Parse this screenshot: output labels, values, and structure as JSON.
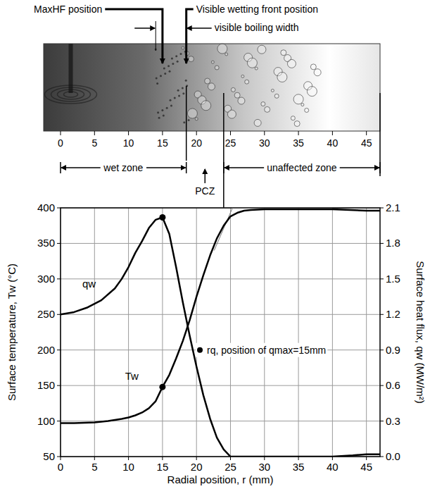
{
  "chart_data": {
    "type": "line",
    "x_label": "Radial position, r (mm)",
    "y_label": "Surface temperature, Tw (°C)",
    "y2_label": "Surface heat flux, qw (MW/m²)",
    "xlim": [
      0,
      47
    ],
    "xticks": [
      0,
      5,
      10,
      15,
      20,
      25,
      30,
      35,
      40,
      45
    ],
    "ylim": [
      50,
      400
    ],
    "yticks": [
      50,
      100,
      150,
      200,
      250,
      300,
      350,
      400
    ],
    "y2lim": [
      0,
      2.1
    ],
    "y2ticks": [
      {
        "value": 0,
        "label": "0.0"
      },
      0.3,
      0.6,
      0.9,
      1.2,
      1.5,
      1.8,
      2.1
    ],
    "grid": true,
    "series": [
      {
        "name": "Tw",
        "color": "#000000",
        "axis": "y",
        "x": [
          0,
          2,
          5,
          7,
          9,
          10,
          11,
          12,
          13,
          14,
          15,
          16,
          17,
          18,
          19,
          20,
          21,
          22,
          23,
          24,
          25,
          26,
          27,
          28,
          30,
          35,
          40,
          45,
          47
        ],
        "values": [
          97,
          97,
          98,
          100,
          103,
          105,
          108,
          112,
          118,
          128,
          148,
          165,
          188,
          213,
          242,
          275,
          305,
          333,
          357,
          375,
          388,
          393,
          396,
          397,
          398,
          398,
          398,
          396,
          396
        ],
        "points": {
          "x": [
            15
          ],
          "values": [
            148
          ]
        }
      },
      {
        "name": "qw",
        "color": "#000000",
        "axis": "y2",
        "x": [
          0,
          2,
          4,
          6,
          8,
          9,
          10,
          11,
          12,
          13,
          14,
          15,
          16,
          17,
          18,
          19,
          20,
          21,
          22,
          23,
          24,
          25,
          27,
          30,
          35,
          40,
          43,
          45,
          47
        ],
        "values": [
          1.2,
          1.22,
          1.26,
          1.32,
          1.42,
          1.5,
          1.6,
          1.72,
          1.82,
          1.93,
          2.0,
          2.02,
          1.88,
          1.6,
          1.3,
          1.02,
          0.76,
          0.52,
          0.32,
          0.16,
          0.06,
          0.0,
          0.0,
          0.0,
          0.0,
          0.0,
          0.01,
          0.02,
          0.02
        ],
        "points": {
          "x": [
            15
          ],
          "values": [
            2.02
          ]
        }
      }
    ],
    "annotations": [
      {
        "text": "rq, position of qmax=15mm",
        "x": 20.5,
        "y": 200
      }
    ],
    "construction_lines": [
      {
        "x": [
          22.6,
          25.3
        ],
        "values": [
          340,
          400
        ]
      },
      {
        "x": [
          25.3,
          40
        ],
        "values": [
          400,
          400
        ]
      }
    ]
  },
  "photo": {
    "markers": [
      {
        "label": "MaxHF position",
        "r": 15
      },
      {
        "label": "Visible wetting front position",
        "r": 18.5
      }
    ],
    "boiling_width": {
      "label": "visible boiling width",
      "from": 14,
      "to": 18.5
    },
    "scale_ticks": [
      0,
      5,
      10,
      15,
      20,
      25,
      30,
      35,
      40,
      45
    ],
    "zones": [
      {
        "label": "wet zone",
        "from": 0,
        "to": 18.5
      },
      {
        "label": "PCZ",
        "from": 18.5,
        "to": 24
      },
      {
        "label": "unaffected zone",
        "from": 24,
        "to": 47
      }
    ]
  }
}
